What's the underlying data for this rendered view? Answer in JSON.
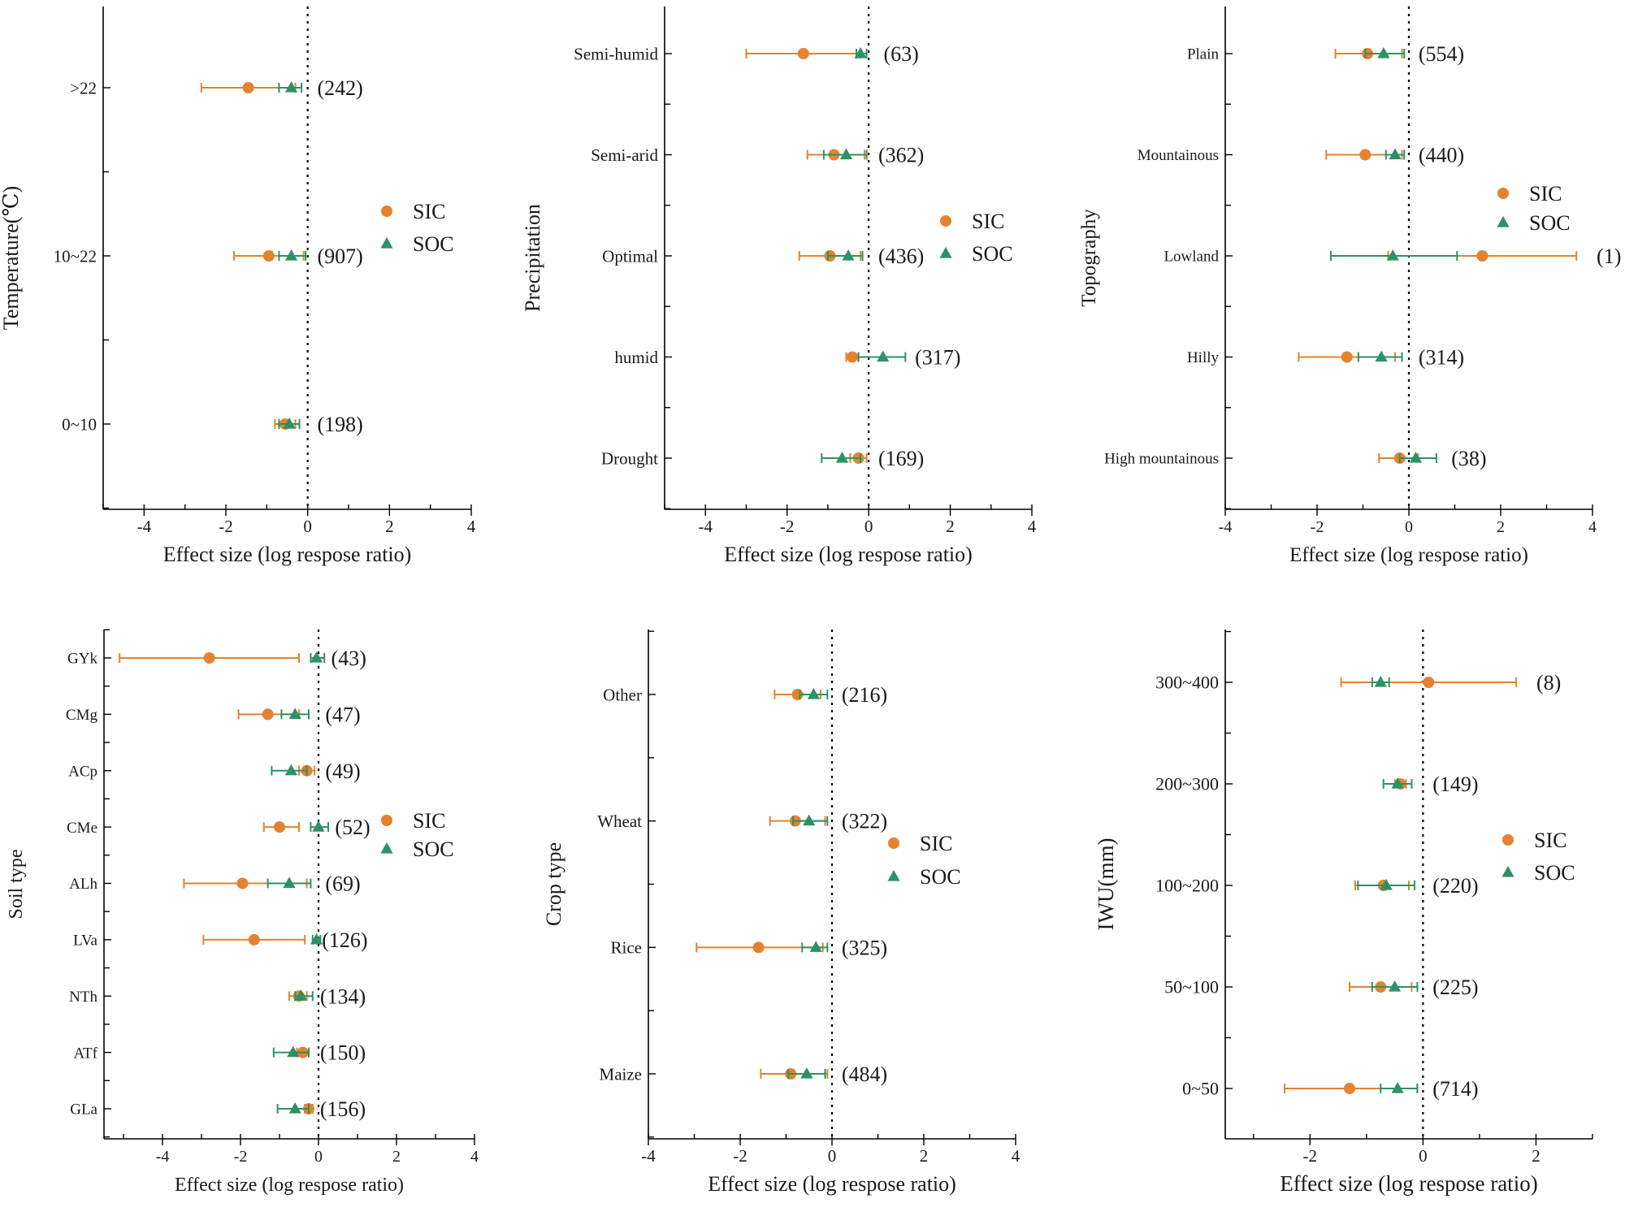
{
  "colors": {
    "sic": "#e5822f",
    "soc": "#2e9166"
  },
  "chart_data": [
    {
      "type": "forest",
      "panel": "temperature",
      "ylabel": "Temperature(℃)",
      "xlabel": "Effect size (log respose ratio)",
      "xlim": [
        -5,
        4
      ],
      "xticks": [
        -4,
        -2,
        0,
        2,
        4
      ],
      "legend": [
        "SIC",
        "SOC"
      ],
      "legend_position": "right-middle",
      "categories": [
        ">22",
        "10~22",
        "0~10"
      ],
      "counts": [
        "(242)",
        "(907)",
        "(198)"
      ],
      "series": [
        {
          "name": "SIC",
          "marker": "circle",
          "mean": [
            -1.45,
            -0.95,
            -0.55
          ],
          "ci": [
            [
              -2.6,
              -0.3
            ],
            [
              -1.8,
              -0.1
            ],
            [
              -0.8,
              -0.3
            ]
          ]
        },
        {
          "name": "SOC",
          "marker": "triangle",
          "mean": [
            -0.4,
            -0.4,
            -0.45
          ],
          "ci": [
            [
              -0.7,
              -0.15
            ],
            [
              -0.7,
              -0.05
            ],
            [
              -0.7,
              -0.2
            ]
          ]
        }
      ]
    },
    {
      "type": "forest",
      "panel": "precipitation",
      "ylabel": "Precipitation",
      "xlabel": "Effect size (log respose ratio)",
      "xlim": [
        -5,
        4
      ],
      "xticks": [
        -4,
        -2,
        0,
        2,
        4
      ],
      "legend": [
        "SIC",
        "SOC"
      ],
      "legend_position": "right-middle",
      "categories": [
        "Semi-humid",
        "Semi-arid",
        "Optimal",
        "humid",
        "Drought"
      ],
      "counts": [
        "(63)",
        "(362)",
        "(436)",
        "(317)",
        "(169)"
      ],
      "series": [
        {
          "name": "SIC",
          "marker": "circle",
          "mean": [
            -1.6,
            -0.85,
            -0.95,
            -0.4,
            -0.25
          ],
          "ci": [
            [
              -3.0,
              -0.2
            ],
            [
              -1.5,
              -0.1
            ],
            [
              -1.7,
              -0.2
            ],
            [
              -0.55,
              -0.25
            ],
            [
              -0.45,
              -0.05
            ]
          ]
        },
        {
          "name": "SOC",
          "marker": "triangle",
          "mean": [
            -0.2,
            -0.55,
            -0.5,
            0.35,
            -0.65
          ],
          "ci": [
            [
              -0.3,
              -0.05
            ],
            [
              -1.1,
              -0.05
            ],
            [
              -1.0,
              -0.15
            ],
            [
              -0.25,
              0.9
            ],
            [
              -1.15,
              -0.2
            ]
          ]
        }
      ]
    },
    {
      "type": "forest",
      "panel": "topography",
      "ylabel": "Topography",
      "xlabel": "Effect size (log respose ratio)",
      "xlim": [
        -4,
        4
      ],
      "xticks": [
        -4,
        -2,
        0,
        2,
        4
      ],
      "legend": [
        "SIC",
        "SOC"
      ],
      "legend_position": "right-upper",
      "categories": [
        "Plain",
        "Mountainous",
        "Lowland",
        "Hilly",
        "High mountainous"
      ],
      "counts": [
        "(554)",
        "(440)",
        "(1)",
        "(314)",
        "(38)"
      ],
      "series": [
        {
          "name": "SIC",
          "marker": "circle",
          "mean": [
            -0.9,
            -0.95,
            1.6,
            -1.35,
            -0.2
          ],
          "ci": [
            [
              -1.6,
              -0.15
            ],
            [
              -1.8,
              -0.15
            ],
            [
              -0.45,
              3.65
            ],
            [
              -2.4,
              -0.3
            ],
            [
              -0.65,
              0.2
            ]
          ]
        },
        {
          "name": "SOC",
          "marker": "triangle",
          "mean": [
            -0.55,
            -0.3,
            -0.35,
            -0.6,
            0.15
          ],
          "ci": [
            [
              -0.95,
              -0.1
            ],
            [
              -0.5,
              -0.1
            ],
            [
              -1.7,
              1.05
            ],
            [
              -1.1,
              -0.15
            ],
            [
              -0.2,
              0.6
            ]
          ]
        }
      ]
    },
    {
      "type": "forest",
      "panel": "soil-type",
      "ylabel": "Soil  type",
      "xlabel": "Effect size (log respose ratio)",
      "xlim": [
        -5.5,
        4
      ],
      "xticks": [
        -4,
        -2,
        0,
        2,
        4
      ],
      "legend": [
        "SIC",
        "SOC"
      ],
      "legend_position": "right-middle",
      "categories": [
        "GYk",
        "CMg",
        "ACp",
        "CMe",
        "ALh",
        "LVa",
        "NTh",
        "ATf",
        "GLa"
      ],
      "counts": [
        "(43)",
        "(47)",
        "(49)",
        "(52)",
        "(69)",
        "(126)",
        "(134)",
        "(150)",
        "(156)"
      ],
      "series": [
        {
          "name": "SIC",
          "marker": "circle",
          "mean": [
            -2.8,
            -1.3,
            -0.3,
            -1.0,
            -1.95,
            -1.65,
            -0.5,
            -0.4,
            -0.25
          ],
          "ci": [
            [
              -5.1,
              -0.5
            ],
            [
              -2.05,
              -0.5
            ],
            [
              -0.5,
              -0.1
            ],
            [
              -1.4,
              -0.5
            ],
            [
              -3.45,
              -0.3
            ],
            [
              -2.95,
              -0.35
            ],
            [
              -0.75,
              -0.3
            ],
            [
              -0.55,
              -0.25
            ],
            [
              -0.35,
              -0.15
            ]
          ]
        },
        {
          "name": "SOC",
          "marker": "triangle",
          "mean": [
            -0.05,
            -0.6,
            -0.7,
            0.0,
            -0.75,
            -0.05,
            -0.45,
            -0.65,
            -0.6
          ],
          "ci": [
            [
              -0.2,
              0.15
            ],
            [
              -0.95,
              -0.25
            ],
            [
              -1.2,
              -0.3
            ],
            [
              -0.2,
              0.25
            ],
            [
              -1.3,
              -0.2
            ],
            [
              -0.15,
              0.05
            ],
            [
              -0.6,
              -0.15
            ],
            [
              -1.15,
              -0.25
            ],
            [
              -1.05,
              -0.25
            ]
          ]
        }
      ]
    },
    {
      "type": "forest",
      "panel": "crop-type",
      "ylabel": "Crop type",
      "xlabel": "Effect size (log respose ratio)",
      "xlim": [
        -4,
        4
      ],
      "xticks": [
        -4,
        -2,
        0,
        2,
        4
      ],
      "legend": [
        "SIC",
        "SOC"
      ],
      "legend_position": "right-middle",
      "categories": [
        "Other",
        "Wheat",
        "Rice",
        "Maize"
      ],
      "counts": [
        "(216)",
        "(322)",
        "(325)",
        "(484)"
      ],
      "series": [
        {
          "name": "SIC",
          "marker": "circle",
          "mean": [
            -0.75,
            -0.8,
            -1.6,
            -0.9
          ],
          "ci": [
            [
              -1.25,
              -0.25
            ],
            [
              -1.35,
              -0.15
            ],
            [
              -2.95,
              -0.2
            ],
            [
              -1.55,
              -0.1
            ]
          ]
        },
        {
          "name": "SOC",
          "marker": "triangle",
          "mean": [
            -0.4,
            -0.5,
            -0.35,
            -0.55
          ],
          "ci": [
            [
              -0.7,
              -0.1
            ],
            [
              -0.85,
              -0.1
            ],
            [
              -0.65,
              -0.1
            ],
            [
              -0.95,
              -0.15
            ]
          ]
        }
      ]
    },
    {
      "type": "forest",
      "panel": "iwu",
      "ylabel": "IWU(mm)",
      "xlabel": "Effect size (log respose ratio)",
      "xlim": [
        -3.5,
        3
      ],
      "xticks": [
        -2,
        0,
        2
      ],
      "legend": [
        "SIC",
        "SOC"
      ],
      "legend_position": "right-middle",
      "categories": [
        "300~400",
        "200~300",
        "100~200",
        "50~100",
        "0~50"
      ],
      "counts": [
        "(8)",
        "(149)",
        "(220)",
        "(225)",
        "(714)"
      ],
      "series": [
        {
          "name": "SIC",
          "marker": "circle",
          "mean": [
            0.1,
            -0.4,
            -0.7,
            -0.75,
            -1.3
          ],
          "ci": [
            [
              -1.45,
              1.65
            ],
            [
              -0.5,
              -0.3
            ],
            [
              -1.2,
              -0.25
            ],
            [
              -1.3,
              -0.2
            ],
            [
              -2.45,
              -0.1
            ]
          ]
        },
        {
          "name": "SOC",
          "marker": "triangle",
          "mean": [
            -0.75,
            -0.45,
            -0.65,
            -0.5,
            -0.45
          ],
          "ci": [
            [
              -0.9,
              -0.6
            ],
            [
              -0.7,
              -0.2
            ],
            [
              -1.15,
              -0.15
            ],
            [
              -0.9,
              -0.1
            ],
            [
              -0.75,
              -0.1
            ]
          ]
        }
      ]
    }
  ]
}
